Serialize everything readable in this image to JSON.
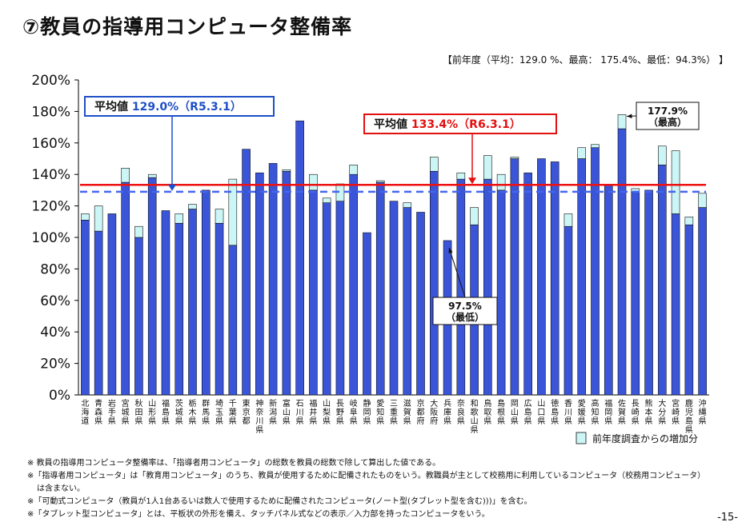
{
  "title": "⑦教員の指導用コンピュータ整備率",
  "prev_year_stats": "【前年度（平均：129.0 %、最高： 175.4%、最低：94.3%） 】",
  "notes": [
    "※ 教員の指導用コンピュータ整備率は、「指導者用コンピュータ」の総数を教員の総数で除して算出した値である。",
    "※「指導者用コンピュータ」は「教育用コンピュータ」のうち、教員が使用するために配備されたものをいう。教職員が主として校務用に利用しているコンピュータ（校務用コンピュータ）",
    "は含まない。",
    "※「可動式コンピュータ（教員が1人1台あるいは数人で使用するために配備されたコンピュータ(ノート型(タブレット型を含む)))」を含む。",
    "※「タブレット型コンピュータ」とは、平板状の外形を備え、タッチパネル式などの表示／入力部を持ったコンピュータをいう。"
  ],
  "page_number": "-15-",
  "colors": {
    "current": "#3b55d9",
    "increase": "#ccf5f5",
    "current_avg_line": "#ee1111",
    "prev_avg_line": "#4466ee",
    "bar_border": "#111111"
  },
  "chart_data": {
    "type": "bar",
    "stacked": true,
    "categories": [
      "北海道",
      "青森県",
      "岩手県",
      "宮城県",
      "秋田県",
      "山形県",
      "福島県",
      "茨城県",
      "栃木県",
      "群馬県",
      "埼玉県",
      "千葉県",
      "東京都",
      "神奈川県",
      "新潟県",
      "富山県",
      "石川県",
      "福井県",
      "山梨県",
      "長野県",
      "岐阜県",
      "静岡県",
      "愛知県",
      "三重県",
      "滋賀県",
      "京都府",
      "大阪府",
      "兵庫県",
      "奈良県",
      "和歌山県",
      "鳥取県",
      "島根県",
      "岡山県",
      "広島県",
      "山口県",
      "徳島県",
      "香川県",
      "愛媛県",
      "高知県",
      "福岡県",
      "佐賀県",
      "長崎県",
      "熊本県",
      "大分県",
      "宮崎県",
      "鹿児島県",
      "沖縄県"
    ],
    "series": [
      {
        "name": "",
        "values": [
          111,
          104,
          115,
          135,
          100,
          138,
          117,
          109,
          118,
          130,
          109,
          95,
          156,
          141,
          147,
          142,
          174,
          130,
          122,
          123,
          140,
          103,
          135,
          123,
          119,
          116,
          142,
          98,
          137,
          108,
          137,
          130,
          150,
          141,
          150,
          148,
          107,
          150,
          157,
          133,
          169,
          129,
          130,
          146,
          115,
          108,
          119
        ]
      },
      {
        "name": "前年度調査からの増加分",
        "values": [
          4,
          16,
          0,
          9,
          7,
          2,
          0,
          6,
          3,
          0,
          9,
          42,
          0,
          0,
          0,
          1,
          0,
          10,
          3,
          11,
          6,
          0,
          1,
          0,
          3,
          0,
          9,
          0,
          4,
          11,
          15,
          10,
          1,
          0,
          0,
          0,
          8,
          7,
          2,
          0,
          9,
          2,
          0,
          12,
          40,
          5,
          9
        ]
      }
    ],
    "ylim": [
      0,
      200
    ],
    "yticks": [
      "0%",
      "20%",
      "40%",
      "60%",
      "80%",
      "100%",
      "120%",
      "140%",
      "160%",
      "180%",
      "200%"
    ],
    "current_average": {
      "value": 133.4,
      "label": "平均値 133.4%（R6.3.1）",
      "label_prefix": "平均値",
      "label_value": "133.4%（R6.3.1）"
    },
    "previous_average": {
      "value": 129.0,
      "label": "平均値 129.0%（R5.3.1）",
      "label_prefix": "平均値",
      "label_value": "129.0%（R5.3.1）"
    },
    "annotations": [
      {
        "category": "佐賀県",
        "value": 177.9,
        "line1": "177.9%",
        "line2": "（最高）"
      },
      {
        "category": "兵庫県",
        "value": 97.5,
        "line1": "97.5%",
        "line2": "（最低）"
      }
    ],
    "legend": "bottom-right",
    "grid": false
  }
}
